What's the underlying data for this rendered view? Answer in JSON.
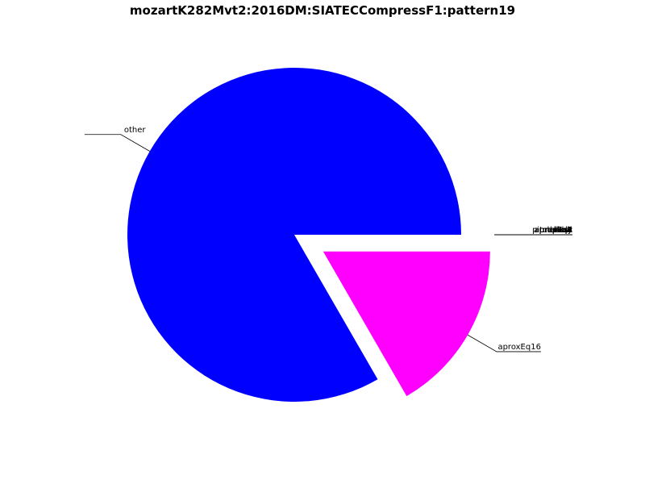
{
  "chart_data": {
    "type": "pie",
    "title": "mozartK282Mvt2:2016DM:SIATECCompressF1:pattern19",
    "slices": [
      {
        "label": "other",
        "value": 0.8333,
        "color": "#0000ff",
        "exploded": false
      },
      {
        "label": "aproxEq16",
        "value": 0.1667,
        "color": "#ff00ff",
        "exploded": true
      },
      {
        "label": "bass",
        "value": 0,
        "color": "#ff00ff",
        "exploded": true
      },
      {
        "label": "pitchclass",
        "value": 0,
        "color": "#ff00ff",
        "exploded": true
      },
      {
        "label": "dur",
        "value": 0,
        "color": "#ff00ff",
        "exploded": true
      },
      {
        "label": "onset",
        "value": 0,
        "color": "#ff00ff",
        "exploded": true
      },
      {
        "label": "aproxEq8",
        "value": 0,
        "color": "#ff00ff",
        "exploded": true
      },
      {
        "label": "aproxEq4",
        "value": 0,
        "color": "#ff00ff",
        "exploded": true
      },
      {
        "label": "aproxEq2",
        "value": 0,
        "color": "#ff00ff",
        "exploded": true
      },
      {
        "label": "dpitch",
        "value": 0,
        "color": "#ff00ff",
        "exploded": true
      },
      {
        "label": "upitch",
        "value": 0,
        "color": "#ff00ff",
        "exploded": true
      },
      {
        "label": "chord",
        "value": 0,
        "color": "#ff00ff",
        "exploded": true
      },
      {
        "label": "melody",
        "value": 0,
        "color": "#ff00ff",
        "exploded": true
      },
      {
        "label": "exact",
        "value": 0,
        "color": "#ff00ff",
        "exploded": true
      }
    ]
  }
}
